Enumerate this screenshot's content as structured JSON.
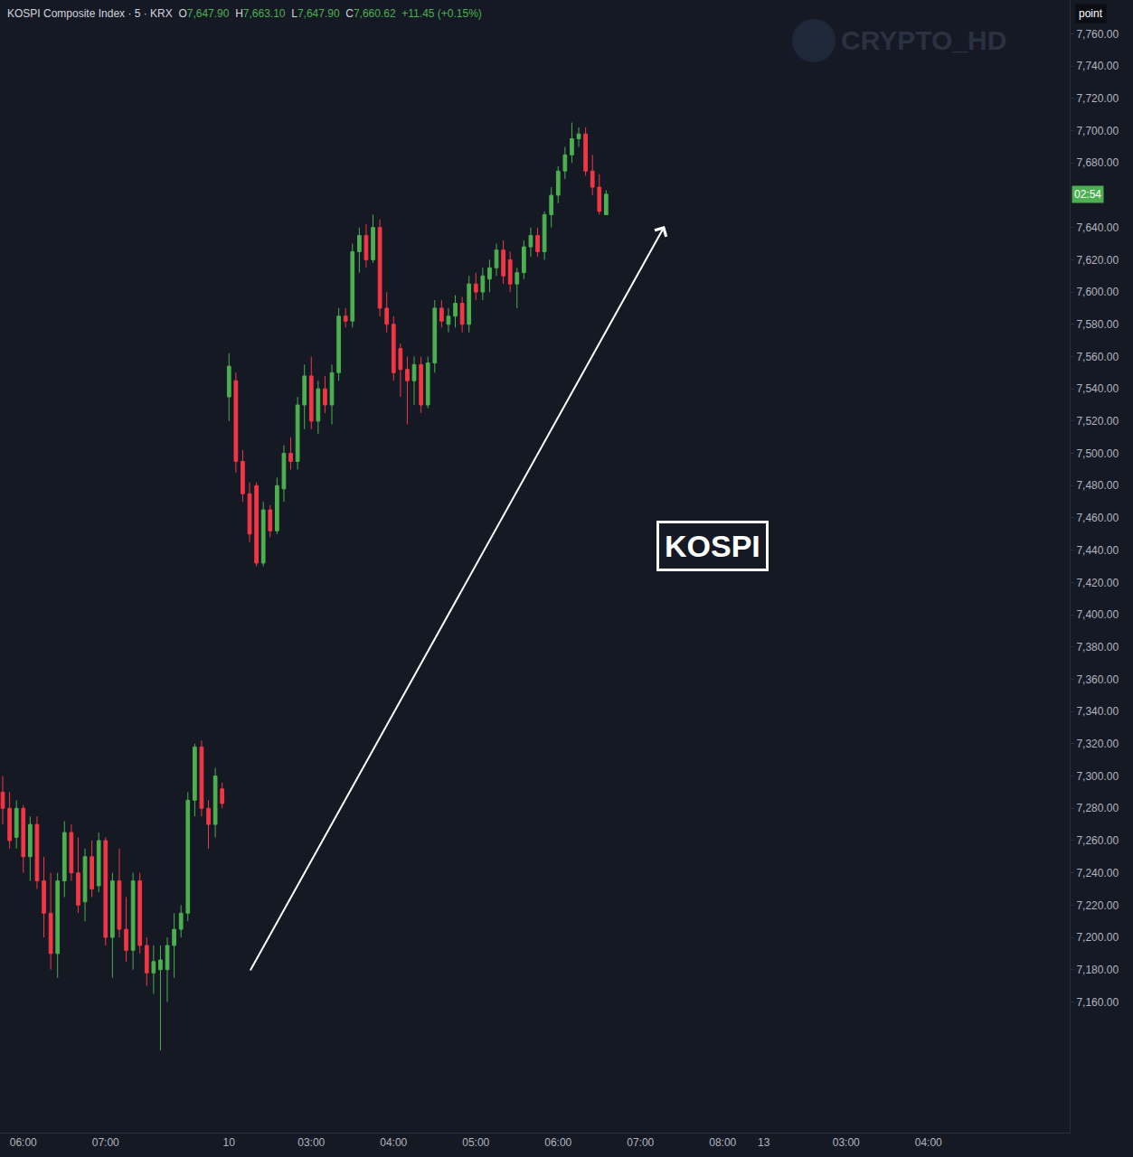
{
  "chart_data": {
    "type": "candlestick",
    "title": "KOSPI Composite Index · 5 · KRX",
    "ohlc": [
      {
        "label": "O",
        "text": "7,647.90"
      },
      {
        "label": "H",
        "text": "7,663.10"
      },
      {
        "label": "L",
        "text": "7,647.90"
      },
      {
        "label": "C",
        "text": "7,660.62"
      }
    ],
    "change": "+11.45 (+0.15%)",
    "watermark": "CRYPTO_HD",
    "label": "KOSPI",
    "unit_label": "point",
    "price_tag": {
      "value": 7660.62,
      "label": "02:54"
    },
    "color": {
      "increasing": "#4caf50",
      "decreasing": "#f23645"
    },
    "grid": false,
    "xlim": [
      -0.4,
      155.6
    ],
    "ylim": [
      7079,
      7781
    ],
    "yticks": [
      {
        "value": 7160,
        "label": "7,160.00"
      },
      {
        "value": 7180,
        "label": "7,180.00"
      },
      {
        "value": 7200,
        "label": "7,200.00"
      },
      {
        "value": 7220,
        "label": "7,220.00"
      },
      {
        "value": 7240,
        "label": "7,240.00"
      },
      {
        "value": 7260,
        "label": "7,260.00"
      },
      {
        "value": 7280,
        "label": "7,280.00"
      },
      {
        "value": 7300,
        "label": "7,300.00"
      },
      {
        "value": 7320,
        "label": "7,320.00"
      },
      {
        "value": 7340,
        "label": "7,340.00"
      },
      {
        "value": 7360,
        "label": "7,360.00"
      },
      {
        "value": 7380,
        "label": "7,380.00"
      },
      {
        "value": 7400,
        "label": "7,400.00"
      },
      {
        "value": 7420,
        "label": "7,420.00"
      },
      {
        "value": 7440,
        "label": "7,440.00"
      },
      {
        "value": 7460,
        "label": "7,460.00"
      },
      {
        "value": 7480,
        "label": "7,480.00"
      },
      {
        "value": 7500,
        "label": "7,500.00"
      },
      {
        "value": 7520,
        "label": "7,520.00"
      },
      {
        "value": 7540,
        "label": "7,540.00"
      },
      {
        "value": 7560,
        "label": "7,560.00"
      },
      {
        "value": 7580,
        "label": "7,580.00"
      },
      {
        "value": 7600,
        "label": "7,600.00"
      },
      {
        "value": 7620,
        "label": "7,620.00"
      },
      {
        "value": 7640,
        "label": "7,640.00"
      },
      {
        "value": 7680,
        "label": "7,680.00"
      },
      {
        "value": 7700,
        "label": "7,700.00"
      },
      {
        "value": 7720,
        "label": "7,720.00"
      },
      {
        "value": 7740,
        "label": "7,740.00"
      },
      {
        "value": 7760,
        "label": "7,760.00"
      }
    ],
    "categories": [
      null,
      null,
      null,
      "06:00",
      null,
      null,
      null,
      null,
      null,
      null,
      null,
      null,
      null,
      null,
      null,
      "07:00",
      null,
      null,
      null,
      null,
      null,
      null,
      null,
      null,
      null,
      null,
      null,
      null,
      null,
      null,
      null,
      null,
      null,
      "10",
      null,
      null,
      null,
      null,
      null,
      null,
      null,
      null,
      null,
      null,
      null,
      "03:00",
      null,
      null,
      null,
      null,
      null,
      null,
      null,
      null,
      null,
      null,
      null,
      "04:00",
      null,
      null,
      null,
      null,
      null,
      null,
      null,
      null,
      null,
      null,
      null,
      "05:00",
      null,
      null,
      null,
      null,
      null,
      null,
      null,
      null,
      null,
      null,
      null,
      "06:00",
      null,
      null,
      null,
      null,
      null,
      null,
      null,
      null,
      null,
      null,
      null,
      "07:00",
      null,
      null,
      null,
      null,
      null,
      null,
      null,
      null,
      null,
      null,
      null,
      "08:00",
      null,
      null,
      null,
      null,
      null,
      "13",
      null,
      null,
      null,
      null,
      null,
      null,
      null,
      null,
      null,
      null,
      null,
      "03:00",
      null,
      null,
      null,
      null,
      null,
      null,
      null,
      null,
      null,
      null,
      null,
      "04:00",
      null,
      null,
      null,
      null,
      null,
      null,
      null,
      null,
      null,
      null,
      null,
      null,
      null,
      null,
      null,
      null,
      null,
      null,
      null,
      null
    ],
    "values": [
      [
        7290,
        7300,
        7270,
        7280
      ],
      [
        7280,
        7290,
        7255,
        7260
      ],
      [
        7262,
        7285,
        7255,
        7280
      ],
      [
        7280,
        7282,
        7240,
        7250
      ],
      [
        7250,
        7275,
        7235,
        7270
      ],
      [
        7270,
        7275,
        7230,
        7235
      ],
      [
        7235,
        7250,
        7200,
        7215
      ],
      [
        7215,
        7240,
        7180,
        7190
      ],
      [
        7190,
        7240,
        7175,
        7235
      ],
      [
        7235,
        7272,
        7225,
        7265
      ],
      [
        7265,
        7270,
        7235,
        7240
      ],
      [
        7240,
        7262,
        7215,
        7220
      ],
      [
        7222,
        7255,
        7210,
        7250
      ],
      [
        7250,
        7260,
        7225,
        7230
      ],
      [
        7232,
        7265,
        7228,
        7260
      ],
      [
        7260,
        7262,
        7195,
        7200
      ],
      [
        7200,
        7240,
        7175,
        7235
      ],
      [
        7235,
        7255,
        7200,
        7205
      ],
      [
        7205,
        7225,
        7185,
        7192
      ],
      [
        7192,
        7240,
        7180,
        7235
      ],
      [
        7235,
        7240,
        7190,
        7195
      ],
      [
        7195,
        7200,
        7170,
        7178
      ],
      [
        7178,
        7195,
        7165,
        7185
      ],
      [
        7180,
        7195,
        7130,
        7186
      ],
      [
        7180,
        7200,
        7160,
        7195
      ],
      [
        7195,
        7215,
        7175,
        7205
      ],
      [
        7205,
        7220,
        7200,
        7215
      ],
      [
        7215,
        7290,
        7210,
        7285
      ],
      [
        7285,
        7320,
        7275,
        7318
      ],
      [
        7318,
        7322,
        7275,
        7280
      ],
      [
        7280,
        7285,
        7255,
        7270
      ],
      [
        7270,
        7305,
        7262,
        7300
      ],
      [
        7292,
        7296,
        7280,
        7283
      ],
      [
        7535,
        7562,
        7520,
        7554
      ],
      [
        7545,
        7550,
        7488,
        7495
      ],
      [
        7495,
        7502,
        7470,
        7475
      ],
      [
        7475,
        7482,
        7445,
        7450
      ],
      [
        7480,
        7482,
        7430,
        7432
      ],
      [
        7432,
        7470,
        7430,
        7465
      ],
      [
        7465,
        7468,
        7448,
        7452
      ],
      [
        7452,
        7485,
        7450,
        7480
      ],
      [
        7478,
        7505,
        7470,
        7500
      ],
      [
        7500,
        7510,
        7490,
        7495
      ],
      [
        7495,
        7535,
        7490,
        7530
      ],
      [
        7530,
        7555,
        7515,
        7548
      ],
      [
        7548,
        7560,
        7515,
        7520
      ],
      [
        7520,
        7545,
        7512,
        7540
      ],
      [
        7540,
        7548,
        7525,
        7530
      ],
      [
        7530,
        7555,
        7518,
        7550
      ],
      [
        7550,
        7590,
        7545,
        7585
      ],
      [
        7585,
        7590,
        7578,
        7582
      ],
      [
        7582,
        7630,
        7578,
        7625
      ],
      [
        7625,
        7640,
        7612,
        7635
      ],
      [
        7635,
        7642,
        7615,
        7620
      ],
      [
        7620,
        7648,
        7618,
        7640
      ],
      [
        7640,
        7645,
        7585,
        7590
      ],
      [
        7590,
        7600,
        7575,
        7580
      ],
      [
        7580,
        7585,
        7545,
        7550
      ],
      [
        7565,
        7568,
        7535,
        7552
      ],
      [
        7552,
        7560,
        7518,
        7545
      ],
      [
        7545,
        7560,
        7530,
        7555
      ],
      [
        7555,
        7560,
        7525,
        7530
      ],
      [
        7530,
        7560,
        7528,
        7556
      ],
      [
        7556,
        7595,
        7550,
        7590
      ],
      [
        7590,
        7595,
        7578,
        7582
      ],
      [
        7580,
        7590,
        7575,
        7585
      ],
      [
        7585,
        7598,
        7578,
        7593
      ],
      [
        7593,
        7597,
        7575,
        7580
      ],
      [
        7580,
        7610,
        7575,
        7605
      ],
      [
        7605,
        7612,
        7595,
        7600
      ],
      [
        7600,
        7615,
        7595,
        7610
      ],
      [
        7608,
        7620,
        7600,
        7615
      ],
      [
        7615,
        7630,
        7610,
        7626
      ],
      [
        7626,
        7632,
        7605,
        7610
      ],
      [
        7620,
        7625,
        7600,
        7605
      ],
      [
        7605,
        7615,
        7590,
        7612
      ],
      [
        7612,
        7632,
        7608,
        7628
      ],
      [
        7628,
        7640,
        7622,
        7635
      ],
      [
        7635,
        7640,
        7622,
        7625
      ],
      [
        7625,
        7650,
        7620,
        7648
      ],
      [
        7648,
        7665,
        7640,
        7660
      ],
      [
        7660,
        7678,
        7655,
        7675
      ],
      [
        7675,
        7690,
        7670,
        7685
      ],
      [
        7685,
        7705,
        7680,
        7695
      ],
      [
        7695,
        7702,
        7690,
        7698
      ],
      [
        7698,
        7702,
        7672,
        7675
      ],
      [
        7675,
        7685,
        7660,
        7665
      ],
      [
        7665,
        7673,
        7648,
        7650
      ],
      [
        7647.9,
        7663.1,
        7647.9,
        7660.62
      ],
      null,
      null,
      null,
      null,
      null,
      null,
      null,
      null,
      null,
      null,
      null,
      null,
      null,
      null,
      null,
      null,
      null,
      null,
      null,
      null,
      null,
      null,
      null,
      null,
      null,
      null,
      null,
      null,
      null,
      null,
      null,
      null,
      null,
      null,
      null,
      null,
      null,
      null,
      null,
      null,
      null,
      null,
      null,
      null,
      null,
      null,
      null,
      null,
      null,
      null,
      null,
      null,
      null,
      null,
      null,
      null,
      null,
      null,
      null,
      null,
      null,
      null,
      null,
      null,
      null,
      null,
      null
    ]
  }
}
